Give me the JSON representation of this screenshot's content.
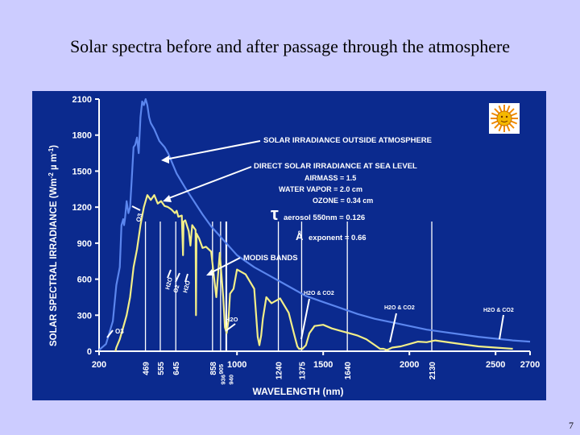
{
  "slide": {
    "title": "Solar spectra before and after passage through the atmosphere",
    "page_number": "7"
  },
  "chart_data": {
    "type": "line",
    "title": "Solar spectra before and after passage through the atmosphere",
    "xlabel": "WAVELENGTH (nm)",
    "ylabel": "SOLAR SPECTRAL IRRADIANCE (Wm^-2 µm^-1)",
    "ylabel_parts": {
      "main": "SOLAR SPECTRAL IRRADIANCE (Wm",
      "exp": "-2",
      "mid": " µ m",
      "exp2": "-1",
      "end": ")"
    },
    "xlim": [
      200,
      2700
    ],
    "ylim": [
      0,
      2100
    ],
    "x_ticks": [
      200,
      1000,
      1500,
      2000,
      2500,
      2700
    ],
    "y_ticks": [
      0,
      300,
      600,
      900,
      1200,
      1500,
      1800,
      2100
    ],
    "modis_bands": [
      469,
      555,
      645,
      858,
      905,
      936,
      940,
      1240,
      1375,
      1640,
      2130
    ],
    "series": [
      {
        "name": "SOLAR IRRADIANCE OUTSIDE ATMOSPHERE",
        "color": "#5b86ee",
        "x": [
          200,
          240,
          280,
          300,
          320,
          330,
          340,
          345,
          350,
          360,
          370,
          380,
          390,
          400,
          410,
          420,
          430,
          440,
          450,
          460,
          470,
          480,
          490,
          500,
          520,
          550,
          580,
          600,
          650,
          700,
          750,
          800,
          850,
          900,
          950,
          1000,
          1100,
          1200,
          1300,
          1400,
          1500,
          1600,
          1700,
          1800,
          1900,
          2000,
          2100,
          2200,
          2300,
          2400,
          2500,
          2600,
          2700
        ],
        "y": [
          10,
          60,
          250,
          550,
          700,
          1050,
          1100,
          1050,
          1100,
          1250,
          1150,
          1200,
          1450,
          1700,
          1720,
          1780,
          1650,
          1950,
          2080,
          2050,
          2100,
          2050,
          1950,
          1900,
          1850,
          1750,
          1700,
          1650,
          1480,
          1360,
          1250,
          1140,
          1040,
          960,
          880,
          800,
          700,
          620,
          540,
          460,
          410,
          360,
          310,
          270,
          240,
          210,
          180,
          160,
          140,
          120,
          105,
          90,
          80
        ]
      },
      {
        "name": "DIRECT SOLAR IRRADIANCE AT SEA LEVEL",
        "color": "#f2ee88",
        "x": [
          295,
          300,
          320,
          340,
          360,
          380,
          400,
          420,
          440,
          460,
          480,
          500,
          520,
          540,
          560,
          580,
          600,
          620,
          640,
          650,
          660,
          680,
          687,
          690,
          700,
          720,
          730,
          740,
          760,
          762,
          765,
          780,
          800,
          820,
          850,
          880,
          900,
          920,
          930,
          940,
          950,
          960,
          980,
          1000,
          1050,
          1100,
          1120,
          1130,
          1140,
          1150,
          1170,
          1200,
          1250,
          1300,
          1330,
          1350,
          1360,
          1380,
          1400,
          1420,
          1450,
          1500,
          1550,
          1600,
          1650,
          1700,
          1750,
          1800,
          1830,
          1850,
          1870,
          1900,
          1950,
          2000,
          2050,
          2100,
          2150,
          2200,
          2300,
          2400,
          2500,
          2600
        ],
        "y": [
          0,
          30,
          100,
          200,
          300,
          450,
          700,
          850,
          1050,
          1200,
          1300,
          1260,
          1300,
          1230,
          1250,
          1210,
          1200,
          1180,
          1150,
          1170,
          1120,
          1130,
          800,
          1080,
          1090,
          1000,
          880,
          1050,
          1010,
          300,
          980,
          940,
          860,
          870,
          830,
          450,
          820,
          450,
          200,
          150,
          250,
          480,
          520,
          680,
          640,
          520,
          120,
          50,
          130,
          270,
          450,
          400,
          440,
          320,
          150,
          40,
          20,
          20,
          50,
          150,
          210,
          220,
          190,
          170,
          150,
          130,
          100,
          50,
          20,
          20,
          10,
          30,
          40,
          60,
          80,
          75,
          90,
          80,
          60,
          40,
          30,
          20
        ]
      }
    ],
    "annotations": [
      "SOLAR IRRADIANCE OUTSIDE ATMOSPHERE",
      "DIRECT SOLAR IRRADIANCE AT SEA LEVEL",
      "AIRMASS = 1.5",
      "WATER VAPOR = 2.0 cm",
      "OZONE = 0.34 cm",
      "τ",
      "aerosol 550nm = 0.126",
      "Å",
      "exponent = 0.66",
      "MODIS BANDS",
      "O3",
      "O3",
      "H2O",
      "O2",
      "H2O",
      "H2O",
      "H2O & CO2",
      "H2O & CO2",
      "H2O & CO2"
    ],
    "legend": "none",
    "grid": false
  },
  "colors": {
    "background": "#ccccff",
    "panel": "#0b2a8e",
    "outside_curve": "#5b86ee",
    "sea_level_curve": "#f2ee88",
    "text": "#ffffff"
  },
  "icons": {
    "sun": "sun-logo-icon"
  }
}
